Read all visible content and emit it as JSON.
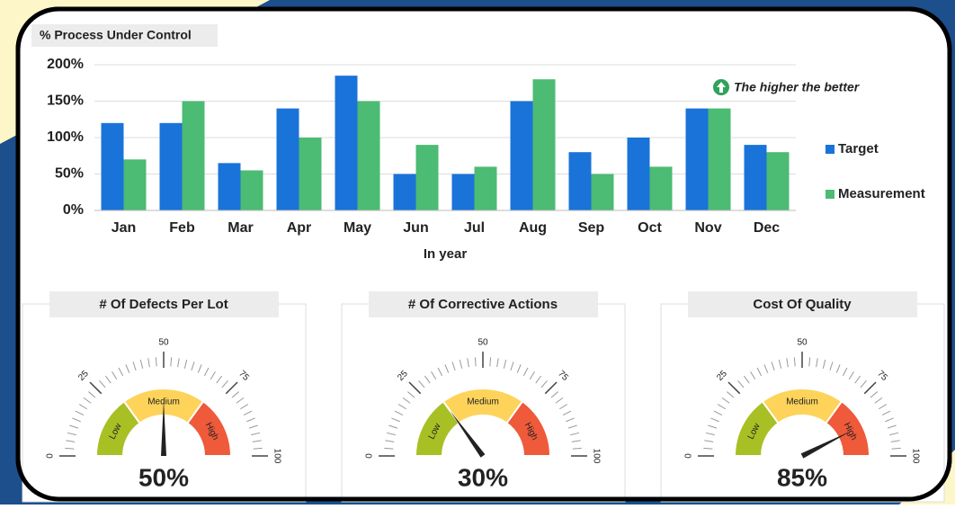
{
  "chart_data": [
    {
      "type": "bar",
      "title": "% Process Under Control",
      "x_label": "In year",
      "annotation": "The higher the better",
      "categories": [
        "Jan",
        "Feb",
        "Mar",
        "Apr",
        "May",
        "Jun",
        "Jul",
        "Aug",
        "Sep",
        "Oct",
        "Nov",
        "Dec"
      ],
      "series": [
        {
          "name": "Target",
          "color": "#1a73d9",
          "values": [
            120,
            120,
            65,
            140,
            185,
            50,
            50,
            150,
            80,
            100,
            140,
            90
          ]
        },
        {
          "name": "Measurement",
          "color": "#4cbb73",
          "values": [
            70,
            150,
            55,
            100,
            150,
            90,
            60,
            180,
            50,
            60,
            140,
            80
          ]
        }
      ],
      "ylim": [
        0,
        200
      ],
      "yticks": [
        {
          "value": 0,
          "label": "0%"
        },
        {
          "value": 50,
          "label": "50%"
        },
        {
          "value": 100,
          "label": "100%"
        },
        {
          "value": 150,
          "label": "150%"
        },
        {
          "value": 200,
          "label": "200%"
        }
      ],
      "grid": true,
      "legend": "right"
    },
    {
      "type": "gauge",
      "title": "# Of Defects Per Lot",
      "value": 50,
      "value_label": "50%",
      "xlim": [
        0,
        100
      ],
      "xticks": [
        0,
        25,
        50,
        75,
        100
      ],
      "bands": [
        {
          "label": "Low",
          "from": 0,
          "to": 30,
          "color": "#a8c023"
        },
        {
          "label": "Medium",
          "from": 30,
          "to": 70,
          "color": "#fdd35a"
        },
        {
          "label": "High",
          "from": 70,
          "to": 100,
          "color": "#ee5a3a"
        }
      ]
    },
    {
      "type": "gauge",
      "title": "# Of Corrective Actions",
      "value": 30,
      "value_label": "30%",
      "xlim": [
        0,
        100
      ],
      "xticks": [
        0,
        25,
        50,
        75,
        100
      ],
      "bands": [
        {
          "label": "Low",
          "from": 0,
          "to": 30,
          "color": "#a8c023"
        },
        {
          "label": "Medium",
          "from": 30,
          "to": 70,
          "color": "#fdd35a"
        },
        {
          "label": "High",
          "from": 70,
          "to": 100,
          "color": "#ee5a3a"
        }
      ]
    },
    {
      "type": "gauge",
      "title": "Cost Of Quality",
      "value": 85,
      "value_label": "85%",
      "xlim": [
        0,
        100
      ],
      "xticks": [
        0,
        25,
        50,
        75,
        100
      ],
      "bands": [
        {
          "label": "Low",
          "from": 0,
          "to": 30,
          "color": "#a8c023"
        },
        {
          "label": "Medium",
          "from": 30,
          "to": 70,
          "color": "#fdd35a"
        },
        {
          "label": "High",
          "from": 70,
          "to": 100,
          "color": "#ee5a3a"
        }
      ]
    }
  ]
}
